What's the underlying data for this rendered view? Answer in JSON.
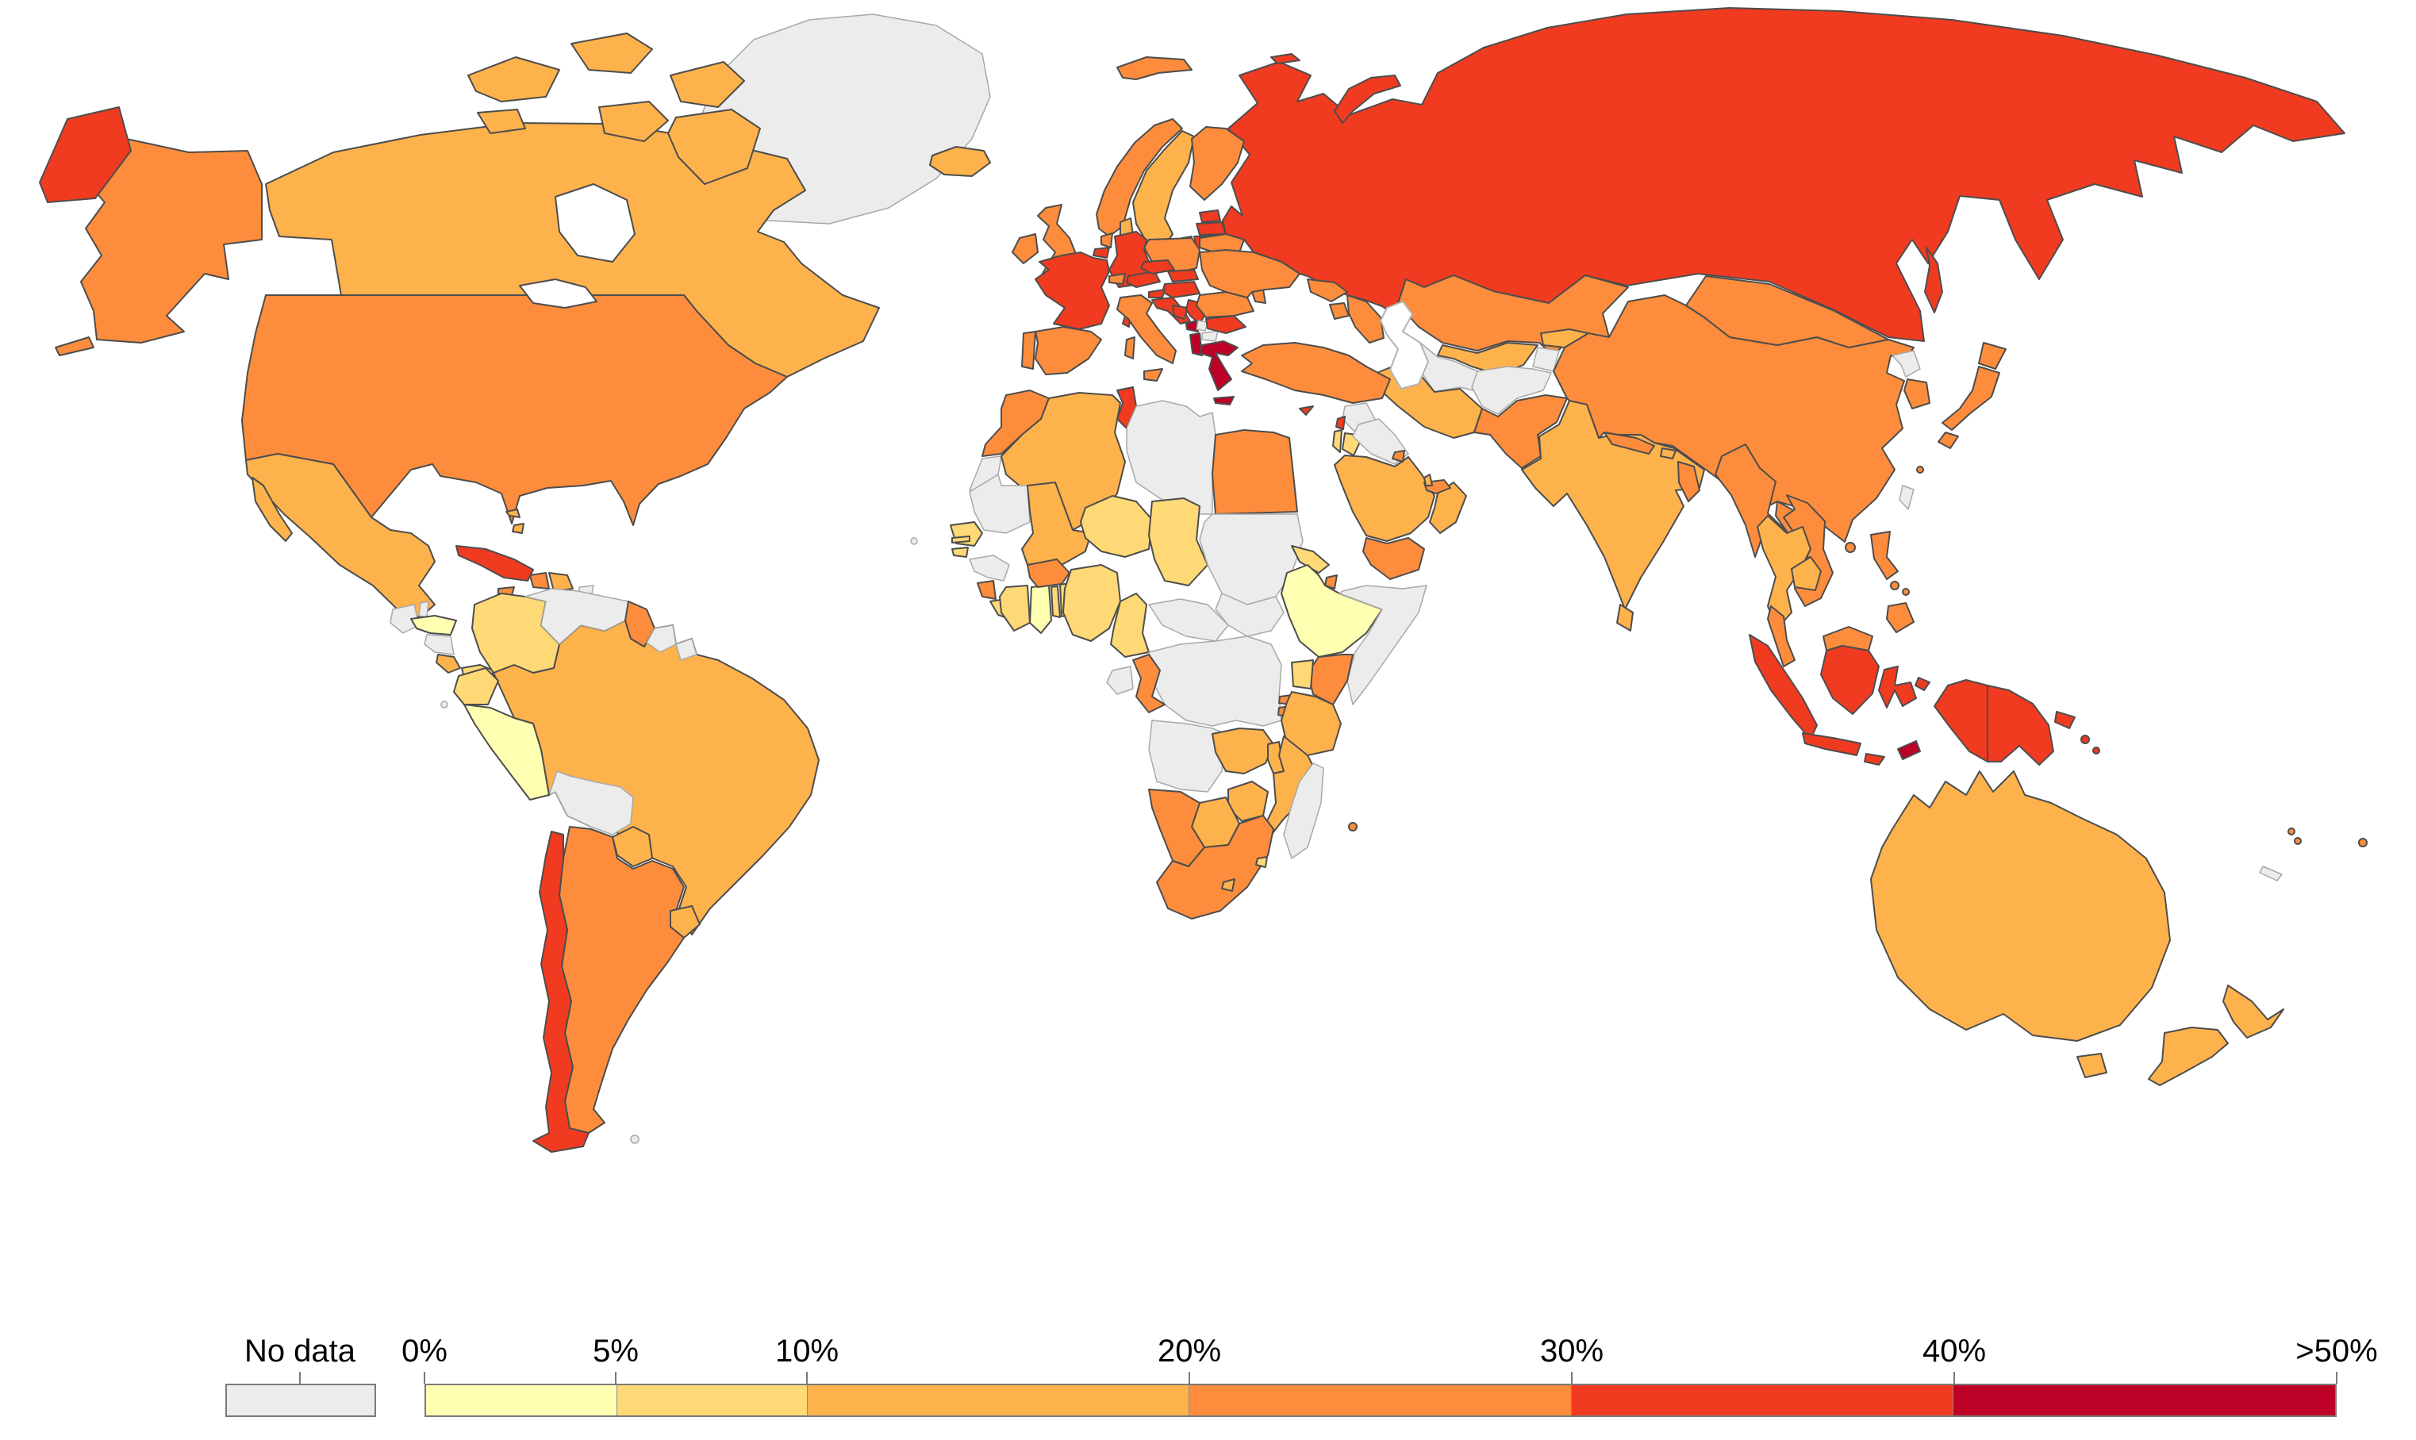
{
  "legend": {
    "no_data_label": "No data",
    "ticks": [
      "0%",
      "5%",
      "10%",
      "20%",
      "30%",
      "40%",
      ">50%"
    ]
  },
  "chart_data": {
    "type": "heatmap",
    "subtype": "world-choropleth",
    "title": "",
    "unit": "%",
    "legend_position": "bottom-left",
    "no_data": {
      "label": "No data",
      "color": "#ececec"
    },
    "bins": [
      {
        "label": "0%-5%",
        "color": "#ffffb2"
      },
      {
        "label": "5%-10%",
        "color": "#fed976"
      },
      {
        "label": "10%-20%",
        "color": "#feb24c"
      },
      {
        "label": "20%-30%",
        "color": "#fd8d3c"
      },
      {
        "label": "30%-40%",
        "color": "#f03b20"
      },
      {
        "label": "40%->50%",
        "color": "#bd0026"
      }
    ],
    "tick_labels": [
      "0%",
      "5%",
      "10%",
      "20%",
      "30%",
      "40%",
      ">50%"
    ],
    "countries": {
      "canada": 2,
      "united-states": 3,
      "greenland": -1,
      "mexico": 2,
      "guatemala": -1,
      "belize": -1,
      "honduras": 0,
      "nicaragua": -1,
      "costa-rica": 2,
      "panama": 1,
      "cuba": 4,
      "jamaica": 3,
      "haiti": 3,
      "dominican-republic": 2,
      "puerto-rico": -1,
      "bahamas": 2,
      "lesser-antilles": -1,
      "colombia": 1,
      "venezuela": -1,
      "guyana": 3,
      "suriname": -1,
      "french-guiana": -1,
      "ecuador": 1,
      "peru": 0,
      "brazil": 2,
      "bolivia": -1,
      "paraguay": 2,
      "uruguay": 2,
      "argentina": 3,
      "chile": 4,
      "falkland-islands": -1,
      "galapagos": -1,
      "iceland": 2,
      "united-kingdom": 3,
      "ireland": 3,
      "norway": 3,
      "sweden": 2,
      "finland": 3,
      "denmark": 2,
      "estonia": 4,
      "latvia": 4,
      "lithuania": 4,
      "poland": 3,
      "germany": 4,
      "netherlands": 3,
      "belgium": 4,
      "france": 4,
      "switzerland": 3,
      "austria": 4,
      "czechia": 4,
      "slovakia": 4,
      "hungary": 4,
      "slovenia": 4,
      "croatia": 4,
      "bosnia-and-herzegovina": 4,
      "serbia": 4,
      "montenegro": 5,
      "kosovo": -1,
      "north-macedonia": -1,
      "albania": 5,
      "greece": 5,
      "bulgaria": 4,
      "romania": 3,
      "moldova": 3,
      "ukraine": 3,
      "belarus": 3,
      "portugal": 3,
      "spain": 3,
      "italy": 3,
      "russia": 4,
      "morocco": 3,
      "western-sahara": -1,
      "algeria": 2,
      "tunisia": 4,
      "libya": -1,
      "egypt": 3,
      "mauritania": -1,
      "mali": 2,
      "niger": 1,
      "chad": 1,
      "sudan": -1,
      "senegal": 1,
      "gambia": 1,
      "guinea-bissau": 1,
      "guinea": -1,
      "sierra-leone": 3,
      "liberia": 1,
      "ivory-coast": 1,
      "ghana": 0,
      "togo": 1,
      "benin": 1,
      "burkina-faso": 3,
      "nigeria": 1,
      "cameroon": 1,
      "central-african-republic": -1,
      "south-sudan": -1,
      "eritrea": 1,
      "djibouti": 3,
      "ethiopia": 0,
      "somalia": -1,
      "kenya": 3,
      "uganda": 1,
      "tanzania": 2,
      "rwanda": 3,
      "burundi": 3,
      "dr-congo": -1,
      "congo": 3,
      "gabon": -1,
      "angola": -1,
      "zambia": 2,
      "malawi": 2,
      "mozambique": 2,
      "zimbabwe": 2,
      "botswana": 2,
      "namibia": 3,
      "south-africa": 3,
      "lesotho": 2,
      "eswatini": 1,
      "madagascar": -1,
      "mauritius": 3,
      "cape-verde": -1,
      "turkey": 3,
      "cyprus": 4,
      "syria": -1,
      "lebanon": 4,
      "israel": 1,
      "jordan": 1,
      "iraq": -1,
      "saudi-arabia": 2,
      "yemen": 3,
      "oman": 2,
      "united-arab-emirates": 3,
      "kuwait": 3,
      "qatar": 2,
      "georgia": 3,
      "armenia": 3,
      "azerbaijan": 3,
      "iran": 2,
      "afghanistan": -1,
      "turkmenistan": -1,
      "uzbekistan": 2,
      "tajikistan": -1,
      "kyrgyzstan": 2,
      "kazakhstan": 3,
      "pakistan": 3,
      "india": 2,
      "nepal": 3,
      "bhutan": 2,
      "bangladesh": 3,
      "sri-lanka": 2,
      "myanmar": 3,
      "thailand": 2,
      "laos": 3,
      "vietnam": 3,
      "cambodia": 2,
      "malaysia": 3,
      "indonesia": 4,
      "timor-leste": 5,
      "philippines": 3,
      "china": 3,
      "mongolia": 3,
      "north-korea": -1,
      "south-korea": 3,
      "japan": 3,
      "taiwan": -1,
      "papua-new-guinea": 4,
      "solomon-islands": 4,
      "fiji": 3,
      "vanuatu": 3,
      "new-caledonia": -1,
      "australia": 2,
      "new-zealand": 2
    },
    "map_colors": {
      "border_data": "#4d4d4d",
      "border_no_data": "#a8a8a8",
      "ocean": "#ffffff"
    }
  }
}
